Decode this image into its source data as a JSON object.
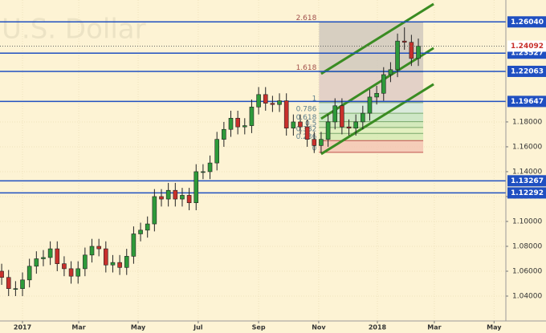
{
  "chart_data": {
    "type": "candlestick",
    "watermark": "U.S. Dollar",
    "x": [
      -3,
      -2,
      -1,
      0,
      1,
      2,
      3,
      4,
      5,
      6,
      7,
      8,
      9,
      10,
      11,
      12,
      13,
      14,
      15,
      16,
      17,
      18,
      19,
      20,
      21,
      22,
      23,
      24,
      25,
      26,
      27,
      28,
      29,
      30,
      31,
      32,
      33,
      34,
      35,
      36,
      37,
      38,
      39,
      40,
      41,
      42,
      43,
      44,
      45,
      46,
      47,
      48,
      49,
      50,
      51,
      52,
      53,
      54,
      55,
      56,
      57
    ],
    "open": [
      1.06,
      1.055,
      1.046,
      1.046,
      1.053,
      1.064,
      1.07,
      1.071,
      1.078,
      1.066,
      1.062,
      1.056,
      1.062,
      1.073,
      1.08,
      1.078,
      1.065,
      1.067,
      1.063,
      1.072,
      1.09,
      1.093,
      1.098,
      1.12,
      1.118,
      1.125,
      1.118,
      1.121,
      1.115,
      1.14,
      1.14,
      1.147,
      1.166,
      1.174,
      1.183,
      1.176,
      1.177,
      1.192,
      1.202,
      1.195,
      1.194,
      1.197,
      1.175,
      1.18,
      1.176,
      1.166,
      1.161,
      1.166,
      1.18,
      1.193,
      1.176,
      1.175,
      1.18,
      1.187,
      1.2,
      1.203,
      1.218,
      1.222,
      1.245,
      1.244,
      1.231
    ],
    "high": [
      1.066,
      1.061,
      1.052,
      1.059,
      1.07,
      1.076,
      1.077,
      1.084,
      1.084,
      1.072,
      1.068,
      1.068,
      1.079,
      1.086,
      1.086,
      1.084,
      1.073,
      1.073,
      1.078,
      1.096,
      1.099,
      1.104,
      1.126,
      1.126,
      1.131,
      1.131,
      1.127,
      1.127,
      1.146,
      1.146,
      1.153,
      1.172,
      1.18,
      1.189,
      1.189,
      1.183,
      1.198,
      1.208,
      1.208,
      1.201,
      1.203,
      1.203,
      1.186,
      1.186,
      1.182,
      1.172,
      1.172,
      1.186,
      1.199,
      1.199,
      1.182,
      1.186,
      1.193,
      1.206,
      1.209,
      1.224,
      1.228,
      1.251,
      1.256,
      1.25,
      1.247
    ],
    "low": [
      1.049,
      1.04,
      1.04,
      1.04,
      1.047,
      1.058,
      1.064,
      1.065,
      1.06,
      1.056,
      1.05,
      1.05,
      1.056,
      1.067,
      1.072,
      1.059,
      1.059,
      1.057,
      1.057,
      1.066,
      1.084,
      1.087,
      1.092,
      1.112,
      1.112,
      1.112,
      1.112,
      1.109,
      1.109,
      1.134,
      1.134,
      1.141,
      1.16,
      1.168,
      1.17,
      1.17,
      1.171,
      1.186,
      1.189,
      1.188,
      1.188,
      1.169,
      1.169,
      1.17,
      1.16,
      1.155,
      1.155,
      1.16,
      1.174,
      1.17,
      1.169,
      1.169,
      1.174,
      1.181,
      1.194,
      1.197,
      1.212,
      1.216,
      1.238,
      1.225,
      1.225
    ],
    "close": [
      1.055,
      1.046,
      1.046,
      1.053,
      1.064,
      1.07,
      1.071,
      1.078,
      1.066,
      1.062,
      1.056,
      1.062,
      1.073,
      1.08,
      1.078,
      1.065,
      1.067,
      1.063,
      1.072,
      1.09,
      1.093,
      1.098,
      1.12,
      1.118,
      1.125,
      1.118,
      1.121,
      1.115,
      1.14,
      1.14,
      1.147,
      1.166,
      1.174,
      1.183,
      1.176,
      1.177,
      1.192,
      1.202,
      1.195,
      1.194,
      1.197,
      1.175,
      1.18,
      1.176,
      1.166,
      1.161,
      1.166,
      1.18,
      1.193,
      1.176,
      1.175,
      1.18,
      1.187,
      1.2,
      1.203,
      1.218,
      1.222,
      1.245,
      1.244,
      1.231,
      1.24092
    ],
    "up_color": "#2e9a3a",
    "down_color": "#c8302c",
    "xlim": [
      -3.24,
      69.6
    ],
    "ylim": [
      1.02,
      1.278
    ],
    "xticks": [
      {
        "value": 0,
        "label": "2017"
      },
      {
        "value": 8.1,
        "label": "Mar"
      },
      {
        "value": 16.65,
        "label": "May"
      },
      {
        "value": 25.3,
        "label": "Jul"
      },
      {
        "value": 34,
        "label": "Sep"
      },
      {
        "value": 42.65,
        "label": "Nov"
      },
      {
        "value": 51.1,
        "label": "2018"
      },
      {
        "value": 59.3,
        "label": "Mar"
      },
      {
        "value": 67.9,
        "label": "May"
      }
    ],
    "yticks": [
      {
        "value": 1.04,
        "label": "1.04000"
      },
      {
        "value": 1.06,
        "label": "1.06000"
      },
      {
        "value": 1.08,
        "label": "1.08000"
      },
      {
        "value": 1.1,
        "label": "1.10000"
      },
      {
        "value": 1.12,
        "label": "1.12000"
      },
      {
        "value": 1.14,
        "label": "1.14000"
      },
      {
        "value": 1.16,
        "label": "1.16000"
      },
      {
        "value": 1.18,
        "label": "1.18000"
      }
    ],
    "grid": true,
    "levels": [
      {
        "value": 1.2604,
        "label": "1.26040"
      },
      {
        "value": 1.23527,
        "label": "1.23527"
      },
      {
        "value": 1.22063,
        "label": "1.22063"
      },
      {
        "value": 1.19647,
        "label": "1.19647"
      },
      {
        "value": 1.13267,
        "label": "1.13267"
      },
      {
        "value": 1.12292,
        "label": "1.12292"
      }
    ],
    "level_color": "#1f4fc1",
    "fibonacci": {
      "x": [
        42.7,
        57.7
      ],
      "start": 1.1555,
      "end": 1.1955,
      "levels": [
        0,
        0.236,
        0.382,
        0.5,
        0.618,
        0.786,
        1,
        1.618,
        2.618
      ]
    },
    "channel": {
      "color": "#3a8c22",
      "x": [
        43.0,
        59.2
      ],
      "lines": [
        [
          1.1542,
          1.2103
        ],
        [
          1.1826,
          1.2394
        ],
        [
          1.2187,
          1.2748
        ]
      ]
    }
  }
}
